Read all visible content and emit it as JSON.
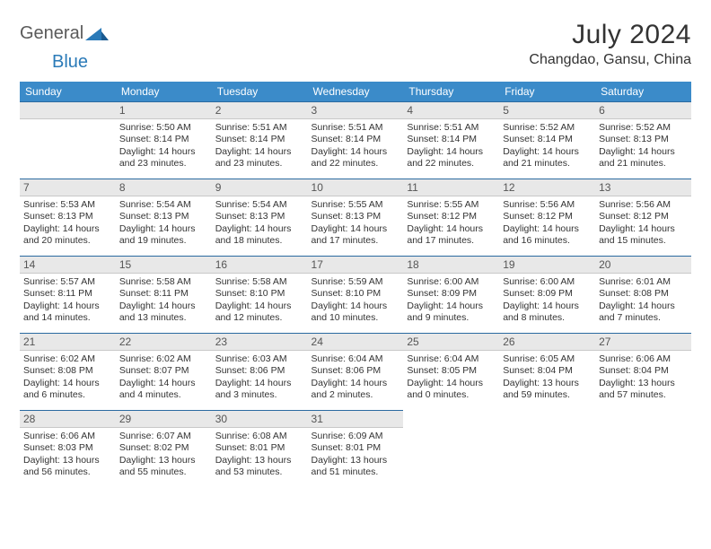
{
  "logo": {
    "text1": "General",
    "text2": "Blue"
  },
  "title": "July 2024",
  "location": "Changdao, Gansu, China",
  "colors": {
    "header_bg": "#3b8bc9",
    "header_text": "#ffffff",
    "daynum_bg": "#e8e8e8",
    "daynum_border_top": "#2a6aa0",
    "body_text": "#333333",
    "logo_gray": "#5a5a5a",
    "logo_blue": "#2a7ab8"
  },
  "weekdays": [
    "Sunday",
    "Monday",
    "Tuesday",
    "Wednesday",
    "Thursday",
    "Friday",
    "Saturday"
  ],
  "weeks": [
    [
      null,
      {
        "n": "1",
        "sr": "5:50 AM",
        "ss": "8:14 PM",
        "dl": "14 hours and 23 minutes."
      },
      {
        "n": "2",
        "sr": "5:51 AM",
        "ss": "8:14 PM",
        "dl": "14 hours and 23 minutes."
      },
      {
        "n": "3",
        "sr": "5:51 AM",
        "ss": "8:14 PM",
        "dl": "14 hours and 22 minutes."
      },
      {
        "n": "4",
        "sr": "5:51 AM",
        "ss": "8:14 PM",
        "dl": "14 hours and 22 minutes."
      },
      {
        "n": "5",
        "sr": "5:52 AM",
        "ss": "8:14 PM",
        "dl": "14 hours and 21 minutes."
      },
      {
        "n": "6",
        "sr": "5:52 AM",
        "ss": "8:13 PM",
        "dl": "14 hours and 21 minutes."
      }
    ],
    [
      {
        "n": "7",
        "sr": "5:53 AM",
        "ss": "8:13 PM",
        "dl": "14 hours and 20 minutes."
      },
      {
        "n": "8",
        "sr": "5:54 AM",
        "ss": "8:13 PM",
        "dl": "14 hours and 19 minutes."
      },
      {
        "n": "9",
        "sr": "5:54 AM",
        "ss": "8:13 PM",
        "dl": "14 hours and 18 minutes."
      },
      {
        "n": "10",
        "sr": "5:55 AM",
        "ss": "8:13 PM",
        "dl": "14 hours and 17 minutes."
      },
      {
        "n": "11",
        "sr": "5:55 AM",
        "ss": "8:12 PM",
        "dl": "14 hours and 17 minutes."
      },
      {
        "n": "12",
        "sr": "5:56 AM",
        "ss": "8:12 PM",
        "dl": "14 hours and 16 minutes."
      },
      {
        "n": "13",
        "sr": "5:56 AM",
        "ss": "8:12 PM",
        "dl": "14 hours and 15 minutes."
      }
    ],
    [
      {
        "n": "14",
        "sr": "5:57 AM",
        "ss": "8:11 PM",
        "dl": "14 hours and 14 minutes."
      },
      {
        "n": "15",
        "sr": "5:58 AM",
        "ss": "8:11 PM",
        "dl": "14 hours and 13 minutes."
      },
      {
        "n": "16",
        "sr": "5:58 AM",
        "ss": "8:10 PM",
        "dl": "14 hours and 12 minutes."
      },
      {
        "n": "17",
        "sr": "5:59 AM",
        "ss": "8:10 PM",
        "dl": "14 hours and 10 minutes."
      },
      {
        "n": "18",
        "sr": "6:00 AM",
        "ss": "8:09 PM",
        "dl": "14 hours and 9 minutes."
      },
      {
        "n": "19",
        "sr": "6:00 AM",
        "ss": "8:09 PM",
        "dl": "14 hours and 8 minutes."
      },
      {
        "n": "20",
        "sr": "6:01 AM",
        "ss": "8:08 PM",
        "dl": "14 hours and 7 minutes."
      }
    ],
    [
      {
        "n": "21",
        "sr": "6:02 AM",
        "ss": "8:08 PM",
        "dl": "14 hours and 6 minutes."
      },
      {
        "n": "22",
        "sr": "6:02 AM",
        "ss": "8:07 PM",
        "dl": "14 hours and 4 minutes."
      },
      {
        "n": "23",
        "sr": "6:03 AM",
        "ss": "8:06 PM",
        "dl": "14 hours and 3 minutes."
      },
      {
        "n": "24",
        "sr": "6:04 AM",
        "ss": "8:06 PM",
        "dl": "14 hours and 2 minutes."
      },
      {
        "n": "25",
        "sr": "6:04 AM",
        "ss": "8:05 PM",
        "dl": "14 hours and 0 minutes."
      },
      {
        "n": "26",
        "sr": "6:05 AM",
        "ss": "8:04 PM",
        "dl": "13 hours and 59 minutes."
      },
      {
        "n": "27",
        "sr": "6:06 AM",
        "ss": "8:04 PM",
        "dl": "13 hours and 57 minutes."
      }
    ],
    [
      {
        "n": "28",
        "sr": "6:06 AM",
        "ss": "8:03 PM",
        "dl": "13 hours and 56 minutes."
      },
      {
        "n": "29",
        "sr": "6:07 AM",
        "ss": "8:02 PM",
        "dl": "13 hours and 55 minutes."
      },
      {
        "n": "30",
        "sr": "6:08 AM",
        "ss": "8:01 PM",
        "dl": "13 hours and 53 minutes."
      },
      {
        "n": "31",
        "sr": "6:09 AM",
        "ss": "8:01 PM",
        "dl": "13 hours and 51 minutes."
      },
      null,
      null,
      null
    ]
  ],
  "labels": {
    "sunrise": "Sunrise: ",
    "sunset": "Sunset: ",
    "daylight": "Daylight: "
  }
}
